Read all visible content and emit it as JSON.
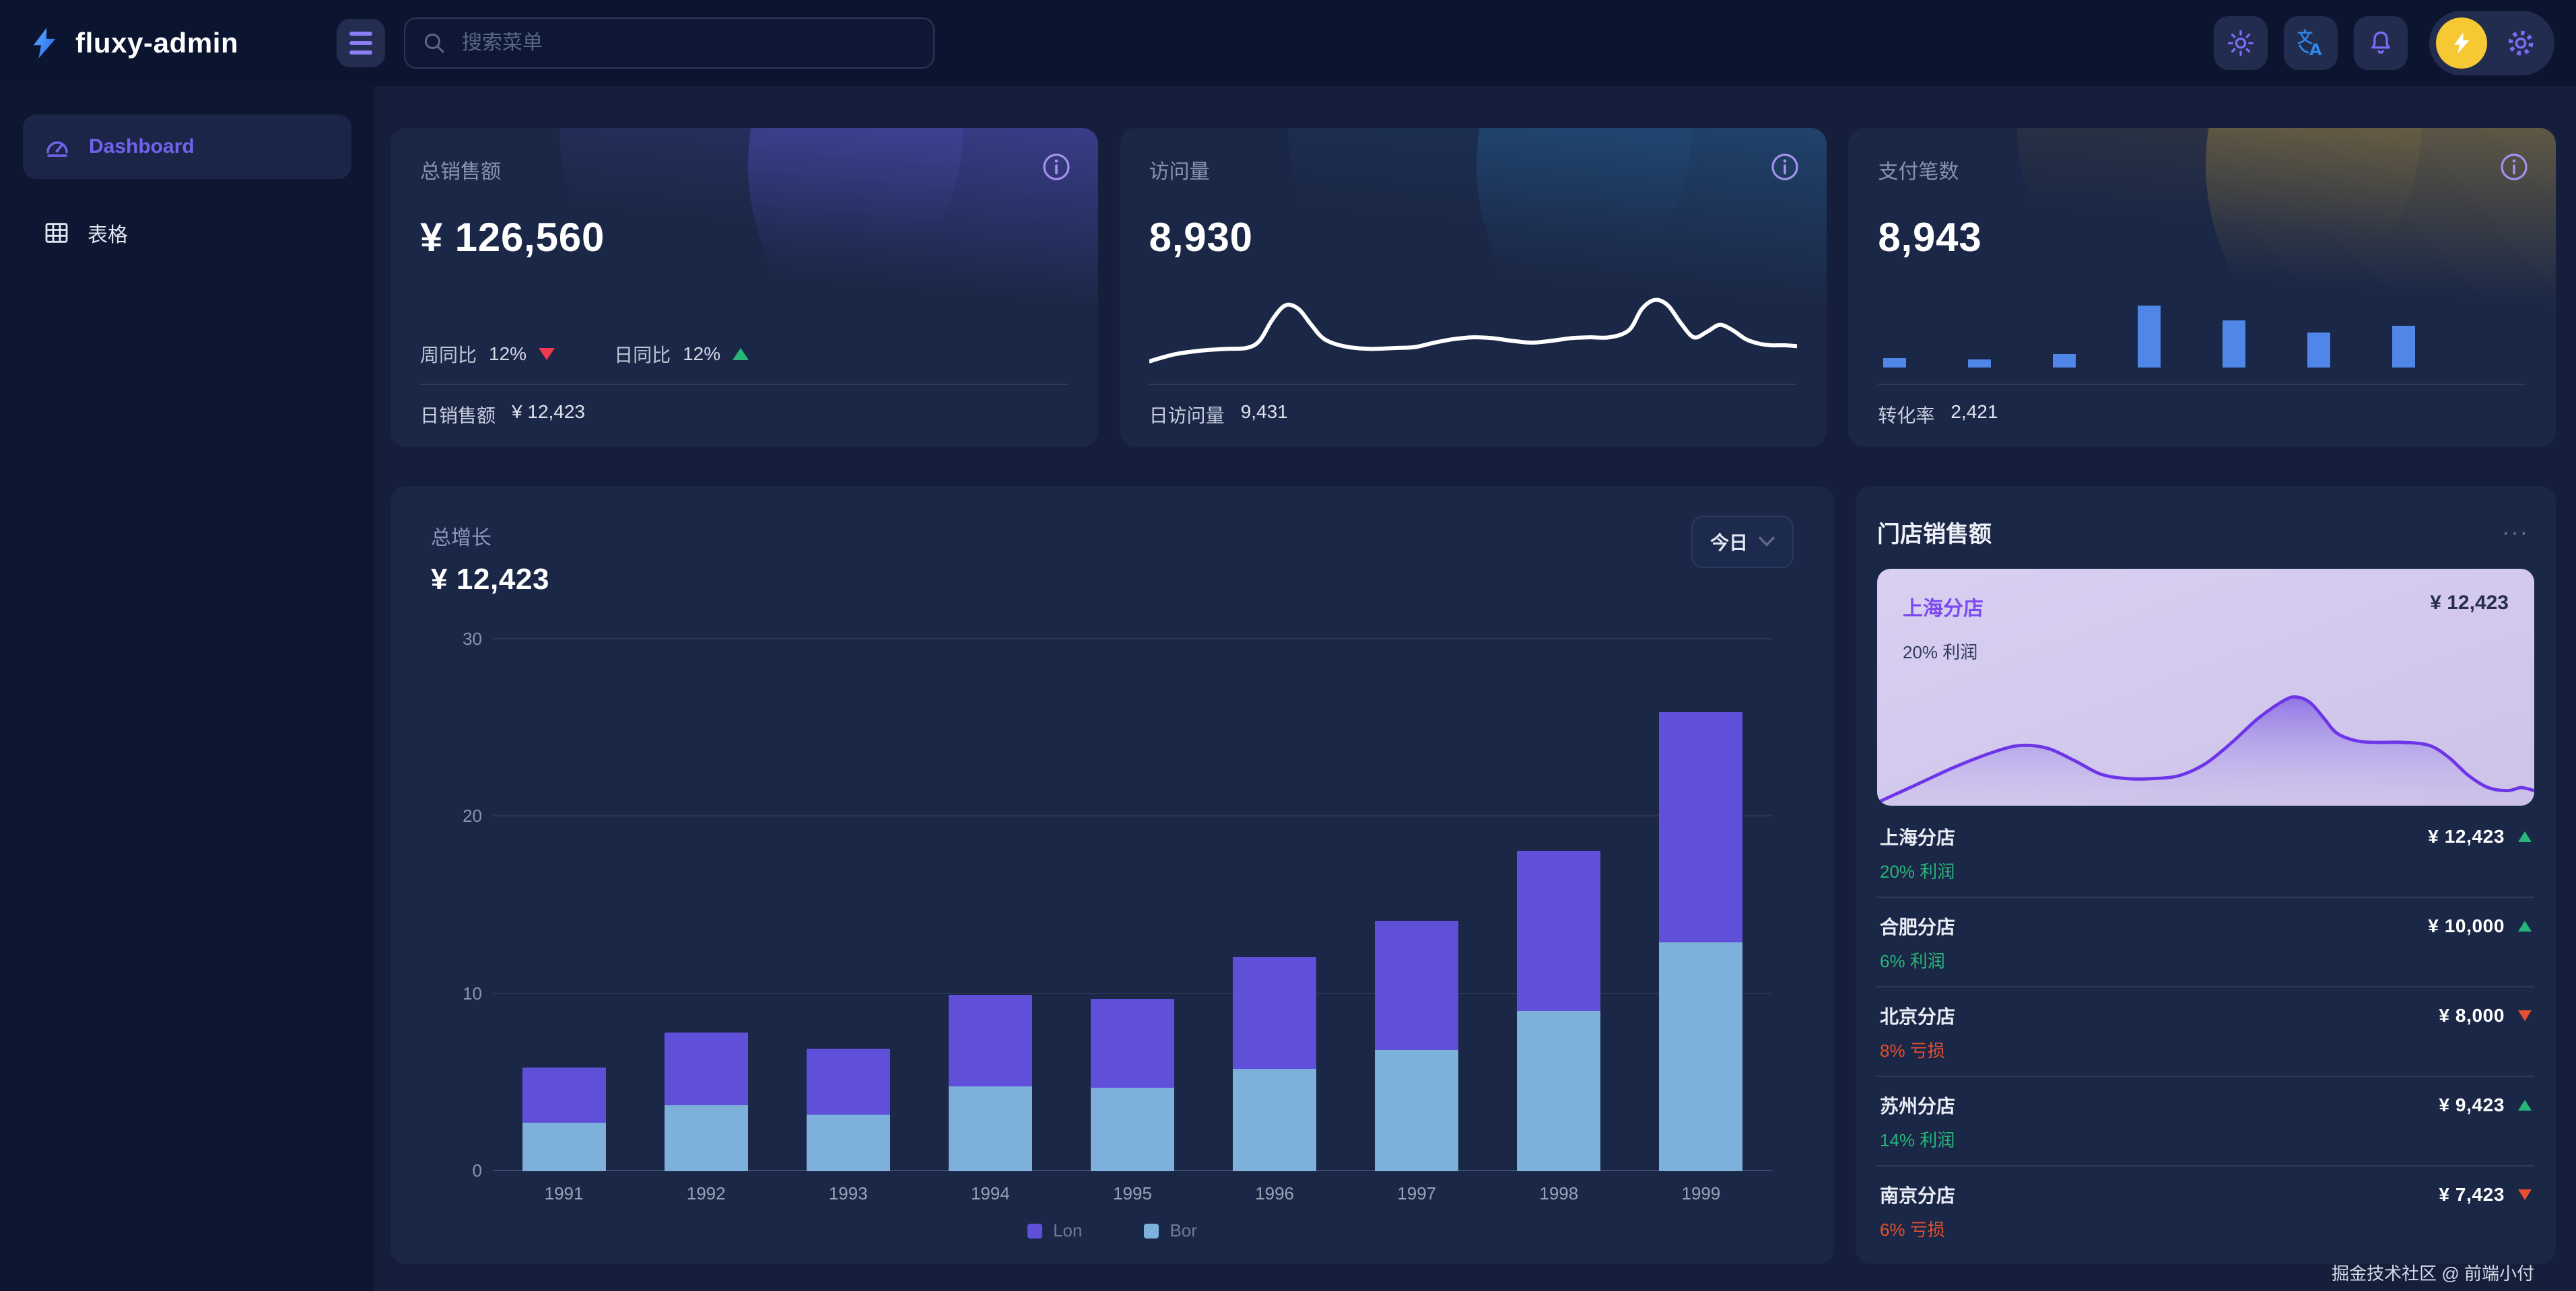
{
  "brand": {
    "name": "fluxy-admin"
  },
  "header": {
    "search_placeholder": "搜索菜单"
  },
  "sidebar": {
    "items": [
      {
        "label": "Dashboard",
        "active": true
      },
      {
        "label": "表格",
        "active": false
      }
    ]
  },
  "stat_cards": [
    {
      "title": "总销售额",
      "value": "¥ 126,560",
      "metrics": [
        {
          "label": "周同比",
          "value": "12%",
          "trend": "down"
        },
        {
          "label": "日同比",
          "value": "12%",
          "trend": "up"
        }
      ],
      "footer_label": "日销售额",
      "footer_value": "¥ 12,423"
    },
    {
      "title": "访问量",
      "value": "8,930",
      "footer_label": "日访问量",
      "footer_value": "9,431"
    },
    {
      "title": "支付笔数",
      "value": "8,943",
      "footer_label": "转化率",
      "footer_value": "2,421"
    }
  ],
  "growth": {
    "title": "总增长",
    "amount": "¥ 12,423",
    "range_label": "今日"
  },
  "stores": {
    "title": "门店销售额",
    "more_label": "···",
    "highlight": {
      "name": "上海分店",
      "value": "¥ 12,423",
      "sub": "20% 利润"
    },
    "rows": [
      {
        "name": "上海分店",
        "value": "¥ 12,423",
        "trend": "up",
        "sub": "20% 利润",
        "sub_type": "profit"
      },
      {
        "name": "合肥分店",
        "value": "¥ 10,000",
        "trend": "up",
        "sub": "6% 利润",
        "sub_type": "profit"
      },
      {
        "name": "北京分店",
        "value": "¥ 8,000",
        "trend": "down",
        "sub": "8% 亏损",
        "sub_type": "loss"
      },
      {
        "name": "苏州分店",
        "value": "¥ 9,423",
        "trend": "up",
        "sub": "14% 利润",
        "sub_type": "profit"
      },
      {
        "name": "南京分店",
        "value": "¥ 7,423",
        "trend": "down",
        "sub": "6% 亏损",
        "sub_type": "loss"
      }
    ]
  },
  "footer_credit": "掘金技术社区 @ 前端小付",
  "colors": {
    "accent_purple": "#6f63ee",
    "bar_purple": "#5f4fd9",
    "bar_blue": "#7db0da",
    "payment_bar_blue": "#4f86e8",
    "up_green": "#27b57a",
    "down_red": "#f0384e",
    "loss_orange": "#e5502e",
    "avatar_yellow": "#f6c833",
    "highlight_purple": "#7b4bf0"
  },
  "chart_data": [
    {
      "id": "visits_sparkline",
      "type": "line",
      "title": "访问量走势",
      "stroke": "#ffffff",
      "points": [
        [
          0,
          93
        ],
        [
          4,
          85
        ],
        [
          8,
          81
        ],
        [
          12,
          79
        ],
        [
          15,
          78
        ],
        [
          17,
          70
        ],
        [
          19,
          46
        ],
        [
          21,
          30
        ],
        [
          23,
          34
        ],
        [
          25,
          52
        ],
        [
          27,
          68
        ],
        [
          30,
          76
        ],
        [
          34,
          79
        ],
        [
          38,
          78
        ],
        [
          41,
          77
        ],
        [
          44,
          72
        ],
        [
          47,
          68
        ],
        [
          50,
          66
        ],
        [
          53,
          67
        ],
        [
          56,
          70
        ],
        [
          59,
          72
        ],
        [
          62,
          70
        ],
        [
          65,
          67
        ],
        [
          68,
          66
        ],
        [
          71,
          66
        ],
        [
          74,
          58
        ],
        [
          76,
          34
        ],
        [
          78,
          24
        ],
        [
          80,
          30
        ],
        [
          82,
          50
        ],
        [
          84,
          66
        ],
        [
          86,
          60
        ],
        [
          88,
          52
        ],
        [
          90,
          58
        ],
        [
          92,
          68
        ],
        [
          94,
          73
        ],
        [
          96,
          75
        ],
        [
          98,
          75
        ],
        [
          100,
          76
        ]
      ]
    },
    {
      "id": "payments_bars",
      "type": "bar",
      "title": "支付笔数走势",
      "color": "#4f86e8",
      "values": [
        1.5,
        1.3,
        2.1,
        9.6,
        7.3,
        5.4,
        6.5
      ],
      "ylim": [
        0,
        10
      ]
    },
    {
      "id": "growth_stacked",
      "type": "bar",
      "stacked": true,
      "title": "总增长",
      "categories": [
        "1991",
        "1992",
        "1993",
        "1994",
        "1995",
        "1996",
        "1997",
        "1998",
        "1999"
      ],
      "series": [
        {
          "name": "Lon",
          "color": "#5f4fd9",
          "values": [
            3.1,
            4.1,
            3.7,
            5.2,
            5.0,
            6.3,
            7.3,
            9.0,
            13.0
          ]
        },
        {
          "name": "Bor",
          "color": "#7db0da",
          "values": [
            2.7,
            3.7,
            3.2,
            4.8,
            4.7,
            5.8,
            6.8,
            9.0,
            12.9
          ]
        }
      ],
      "ylim": [
        0,
        30
      ],
      "yticks": [
        0,
        10,
        20,
        30
      ],
      "grid": true,
      "legend_position": "bottom"
    },
    {
      "id": "store_trend_area",
      "type": "area",
      "title": "上海分店走势",
      "stroke": "#6d35e8",
      "fill_from": "rgba(128,96,228,0.8)",
      "fill_to": "rgba(190,178,238,0.05)",
      "points": [
        [
          0,
          98
        ],
        [
          6,
          86
        ],
        [
          12,
          74
        ],
        [
          18,
          64
        ],
        [
          22,
          60
        ],
        [
          26,
          62
        ],
        [
          30,
          70
        ],
        [
          34,
          79
        ],
        [
          38,
          82
        ],
        [
          42,
          82
        ],
        [
          46,
          80
        ],
        [
          50,
          72
        ],
        [
          54,
          58
        ],
        [
          58,
          42
        ],
        [
          62,
          30
        ],
        [
          64,
          28
        ],
        [
          66,
          32
        ],
        [
          68,
          42
        ],
        [
          70,
          52
        ],
        [
          73,
          57
        ],
        [
          76,
          58
        ],
        [
          80,
          58
        ],
        [
          84,
          60
        ],
        [
          87,
          68
        ],
        [
          90,
          80
        ],
        [
          93,
          88
        ],
        [
          96,
          90
        ],
        [
          98,
          88
        ],
        [
          100,
          90
        ]
      ]
    }
  ]
}
